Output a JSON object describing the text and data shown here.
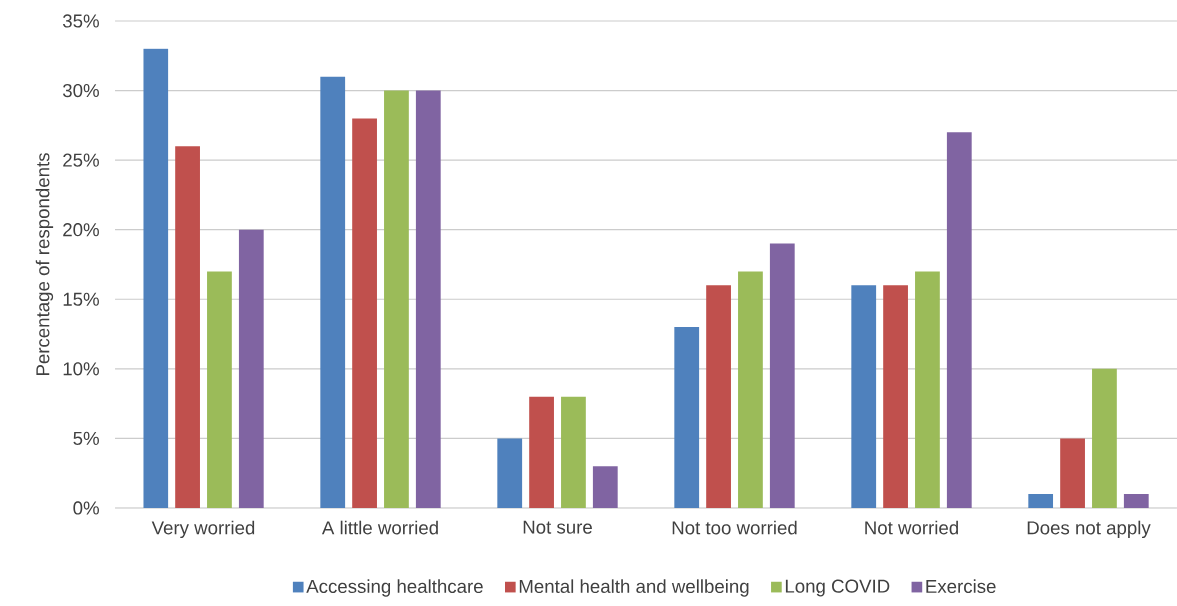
{
  "chart_data": {
    "type": "bar",
    "ylabel": "Percentage of respondents",
    "categories": [
      "Very worried",
      "A little worried",
      "Not sure",
      "Not too worried",
      "Not worried",
      "Does not apply"
    ],
    "series": [
      {
        "name": "Accessing healthcare",
        "color": "#4f81bd",
        "values": [
          33,
          31,
          5,
          13,
          16,
          1
        ]
      },
      {
        "name": "Mental health and wellbeing",
        "color": "#c0504d",
        "values": [
          26,
          28,
          8,
          16,
          16,
          5
        ]
      },
      {
        "name": "Long COVID",
        "color": "#9bbb59",
        "values": [
          17,
          30,
          8,
          17,
          17,
          10
        ]
      },
      {
        "name": "Exercise",
        "color": "#8064a2",
        "values": [
          20,
          30,
          3,
          19,
          27,
          1
        ]
      }
    ],
    "ylim": [
      0,
      35
    ],
    "yticks": [
      {
        "value": 0,
        "label": "0%"
      },
      {
        "value": 5,
        "label": "5%"
      },
      {
        "value": 10,
        "label": "10%"
      },
      {
        "value": 15,
        "label": "15%"
      },
      {
        "value": 20,
        "label": "20%"
      },
      {
        "value": 25,
        "label": "25%"
      },
      {
        "value": 30,
        "label": "30%"
      },
      {
        "value": 35,
        "label": "35%"
      }
    ],
    "grid": "y",
    "legend": "bottom"
  }
}
